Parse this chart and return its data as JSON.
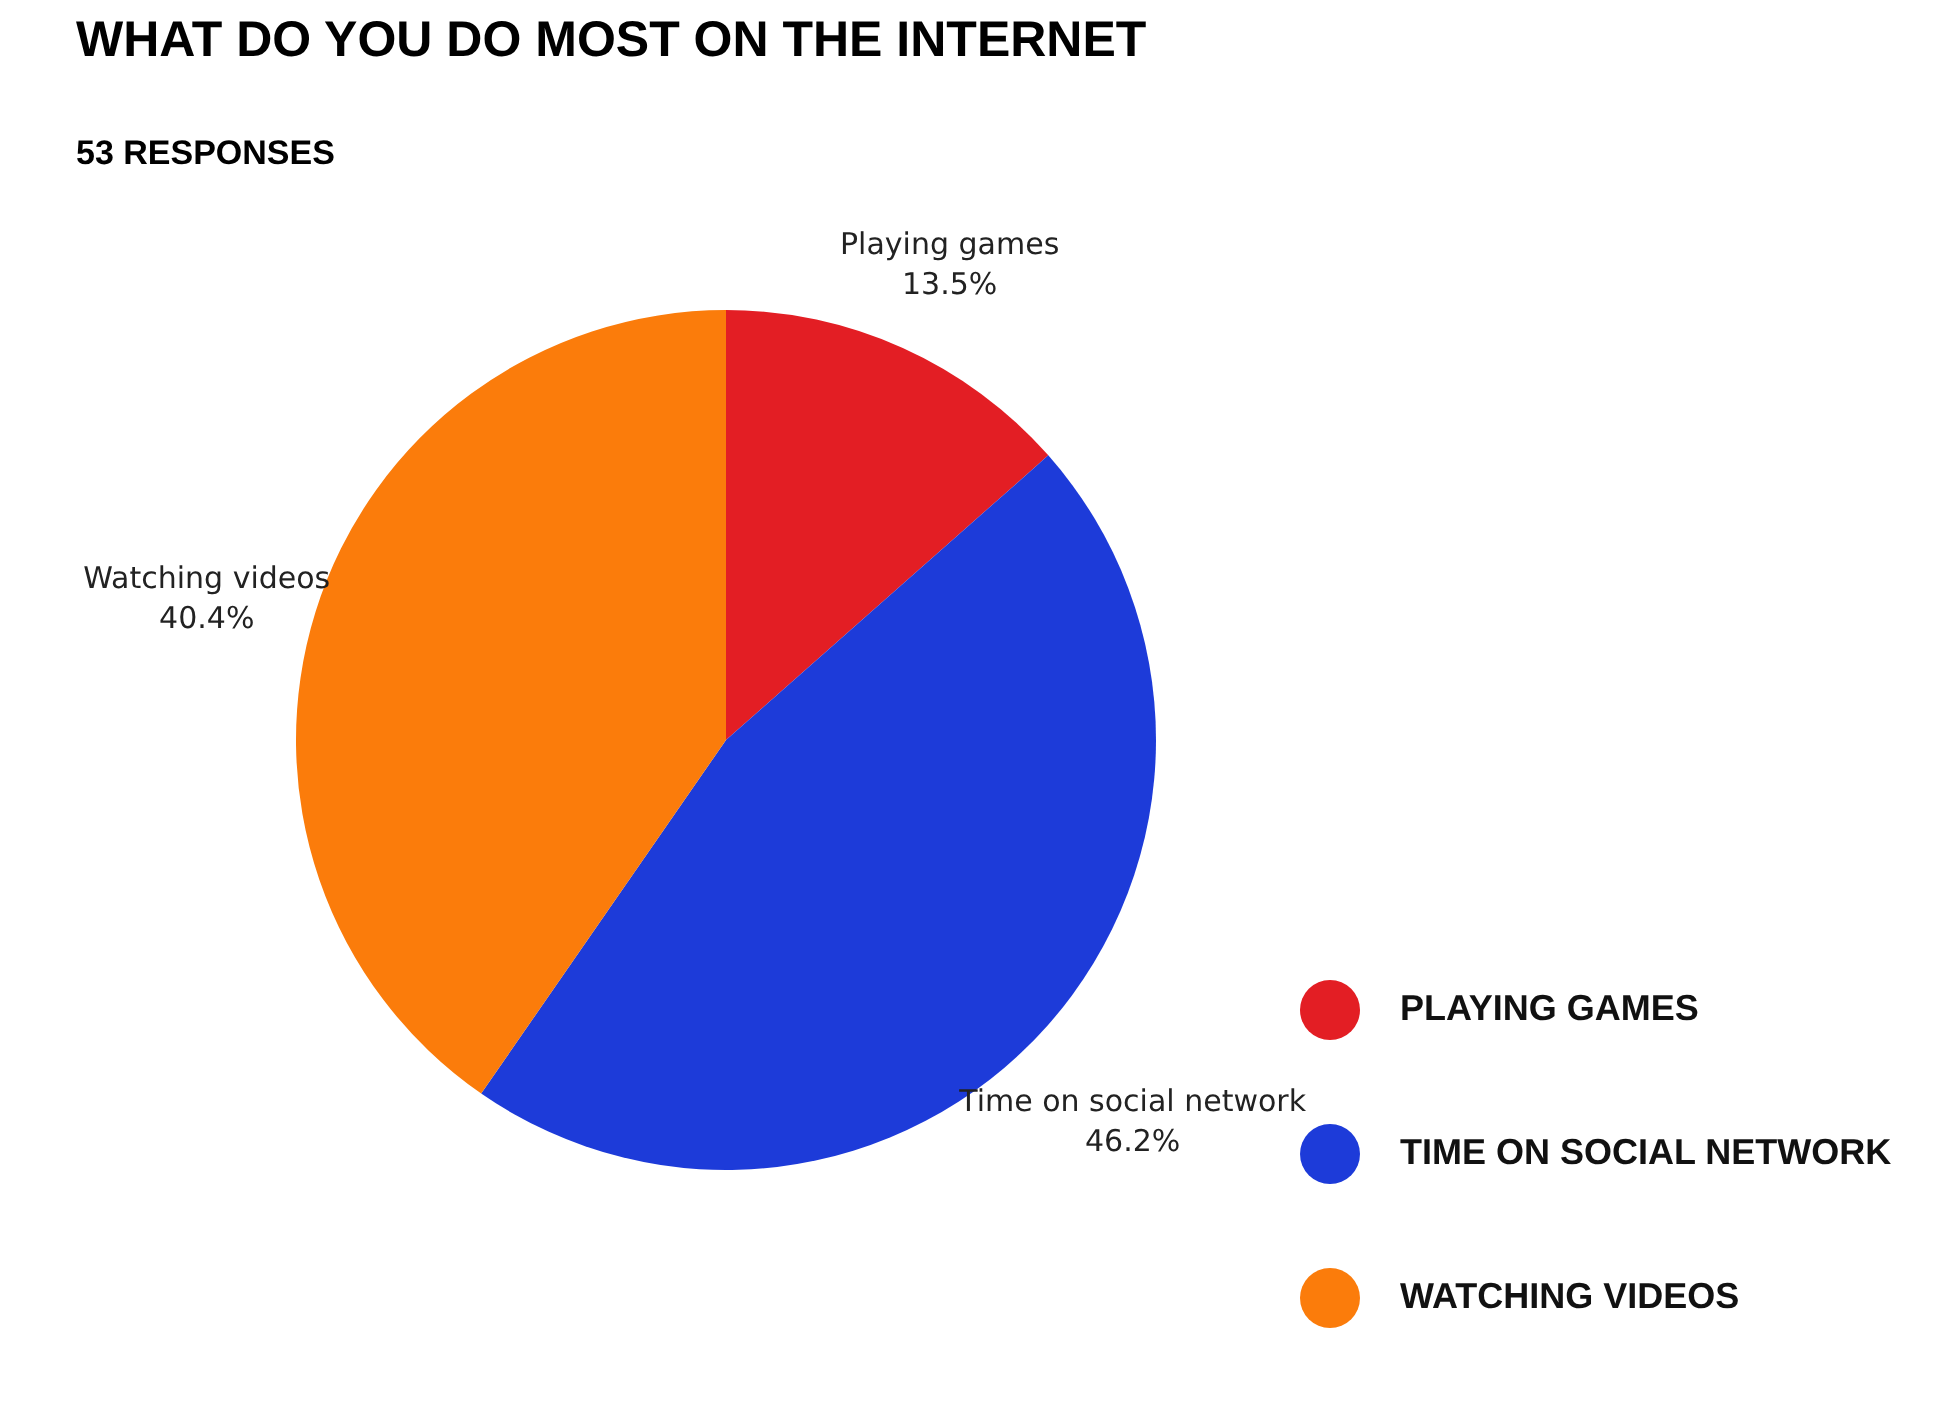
{
  "chart_data": {
    "type": "pie",
    "title": "WHAT DO YOU DO MOST ON THE INTERNET",
    "subtitle": "53 RESPONSES",
    "categories": [
      "PLAYING GAMES",
      "TIME ON SOCIAL NETWORK",
      "WATCHING VIDEOS"
    ],
    "values": [
      13.5,
      46.2,
      40.4
    ],
    "value_labels": [
      "Playing games\n13.5%",
      "Time on social network\n46.2%",
      "Watching videos\n40.4%"
    ],
    "colors": [
      "#e31e24",
      "#1d3bd9",
      "#fb7c0b"
    ],
    "legend": "bottom right"
  }
}
